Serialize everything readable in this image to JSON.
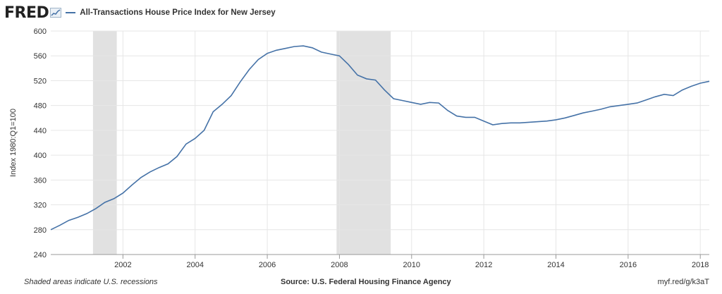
{
  "header": {
    "logo_text": "FRED",
    "legend_label": "All-Transactions House Price Index for New Jersey"
  },
  "footer": {
    "note": "Shaded areas indicate U.S. recessions",
    "source": "Source: U.S. Federal Housing Finance Agency",
    "link": "myf.red/g/k3aT"
  },
  "colors": {
    "line": "#4572a7",
    "recession": "#e1e1e1",
    "grid": "#e6e6e6",
    "plot_bg": "#ffffff"
  },
  "chart_data": {
    "type": "line",
    "title": "All-Transactions House Price Index for New Jersey",
    "xlabel": "",
    "ylabel": "Index 1980:Q1=100",
    "xlim": [
      2000.0,
      2018.25
    ],
    "ylim": [
      240,
      600
    ],
    "grid": true,
    "legend": "top-left",
    "y_ticks": [
      "240",
      "280",
      "320",
      "360",
      "400",
      "440",
      "480",
      "520",
      "560",
      "600"
    ],
    "x_ticks": [
      "2002",
      "2004",
      "2006",
      "2008",
      "2010",
      "2012",
      "2014",
      "2016",
      "2018"
    ],
    "recessions": [
      [
        2001.17,
        2001.83
      ],
      [
        2007.92,
        2009.42
      ]
    ],
    "series": [
      {
        "name": "All-Transactions House Price Index for New Jersey",
        "x": [
          2000.0,
          2000.25,
          2000.5,
          2000.75,
          2001.0,
          2001.25,
          2001.5,
          2001.75,
          2002.0,
          2002.25,
          2002.5,
          2002.75,
          2003.0,
          2003.25,
          2003.5,
          2003.75,
          2004.0,
          2004.25,
          2004.5,
          2004.75,
          2005.0,
          2005.25,
          2005.5,
          2005.75,
          2006.0,
          2006.25,
          2006.5,
          2006.75,
          2007.0,
          2007.25,
          2007.5,
          2007.75,
          2008.0,
          2008.25,
          2008.5,
          2008.75,
          2009.0,
          2009.25,
          2009.5,
          2009.75,
          2010.0,
          2010.25,
          2010.5,
          2010.75,
          2011.0,
          2011.25,
          2011.5,
          2011.75,
          2012.0,
          2012.25,
          2012.5,
          2012.75,
          2013.0,
          2013.25,
          2013.5,
          2013.75,
          2014.0,
          2014.25,
          2014.5,
          2014.75,
          2015.0,
          2015.25,
          2015.5,
          2015.75,
          2016.0,
          2016.25,
          2016.5,
          2016.75,
          2017.0,
          2017.25,
          2017.5,
          2017.75,
          2018.0,
          2018.25
        ],
        "values": [
          280,
          287,
          295,
          300,
          306,
          314,
          324,
          330,
          339,
          352,
          364,
          373,
          380,
          386,
          398,
          418,
          427,
          440,
          470,
          482,
          496,
          518,
          538,
          554,
          564,
          569,
          572,
          575,
          576,
          573,
          566,
          563,
          560,
          546,
          529,
          523,
          521,
          505,
          491,
          488,
          485,
          482,
          485,
          484,
          472,
          463,
          461,
          461,
          455,
          449,
          451,
          452,
          452,
          453,
          454,
          455,
          457,
          460,
          464,
          468,
          471,
          474,
          478,
          480,
          482,
          484,
          489,
          494,
          498,
          496,
          505,
          511,
          516,
          519
        ]
      }
    ]
  }
}
